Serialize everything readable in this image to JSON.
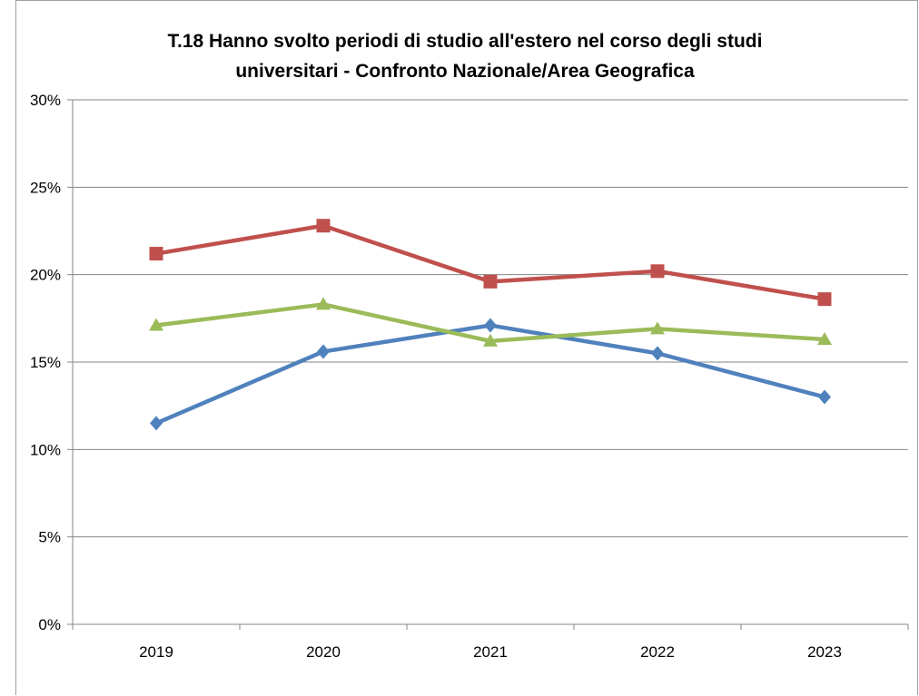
{
  "chart_data": {
    "type": "line",
    "title": "T.18 Hanno svolto periodi di studio all'estero nel corso degli studi universitari - Confronto Nazionale/Area Geografica",
    "title_lines": [
      "T.18 Hanno svolto periodi di studio all'estero nel corso degli studi",
      "universitari - Confronto Nazionale/Area Geografica"
    ],
    "xlabel": "",
    "ylabel": "",
    "categories": [
      "2019",
      "2020",
      "2021",
      "2022",
      "2023"
    ],
    "ylim": [
      0,
      30
    ],
    "yticks": [
      "0%",
      "5%",
      "10%",
      "15%",
      "20%",
      "25%",
      "30%"
    ],
    "grid": true,
    "legend": "none",
    "series": [
      {
        "color": "#4f81bd",
        "marker": "diamond",
        "values": [
          11.5,
          15.6,
          17.1,
          15.5,
          13.0
        ]
      },
      {
        "color": "#c0504d",
        "marker": "square",
        "values": [
          21.2,
          22.8,
          19.6,
          20.2,
          18.6
        ]
      },
      {
        "color": "#9bbb59",
        "marker": "triangle",
        "values": [
          17.1,
          18.3,
          16.2,
          16.9,
          16.3
        ]
      }
    ]
  }
}
